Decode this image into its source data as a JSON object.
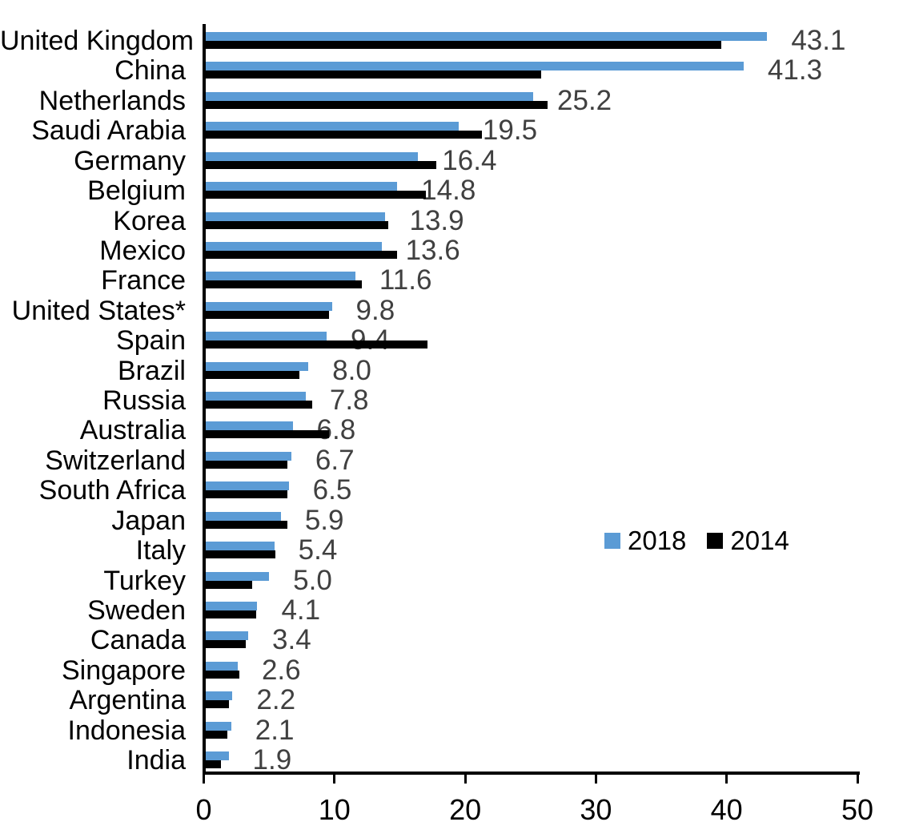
{
  "chart_data": {
    "type": "bar",
    "orientation": "horizontal",
    "title": "",
    "xlabel": "",
    "ylabel": "",
    "categories": [
      "United Kingdom",
      "China",
      "Netherlands",
      "Saudi Arabia",
      "Germany",
      "Belgium",
      "Korea",
      "Mexico",
      "France",
      "United States*",
      "Spain",
      "Brazil",
      "Russia",
      "Australia",
      "Switzerland",
      "South Africa",
      "Japan",
      "Italy",
      "Turkey",
      "Sweden",
      "Canada",
      "Singapore",
      "Argentina",
      "Indonesia",
      "India"
    ],
    "series": [
      {
        "name": "2018",
        "color": "#5B9BD5",
        "values": [
          43.1,
          41.3,
          25.2,
          19.5,
          16.4,
          14.8,
          13.9,
          13.6,
          11.6,
          9.8,
          9.4,
          8.0,
          7.8,
          6.8,
          6.7,
          6.5,
          5.9,
          5.4,
          5.0,
          4.1,
          3.4,
          2.6,
          2.2,
          2.1,
          1.9
        ]
      },
      {
        "name": "2014",
        "color": "#000000",
        "values": [
          39.6,
          25.8,
          26.3,
          21.3,
          17.8,
          17.0,
          14.1,
          14.8,
          12.1,
          9.6,
          17.1,
          7.3,
          8.3,
          9.6,
          6.4,
          6.4,
          6.4,
          5.5,
          3.7,
          4.0,
          3.2,
          2.7,
          1.9,
          1.8,
          1.3
        ]
      }
    ],
    "value_labels": [
      "43.1",
      "41.3",
      "25.2",
      "19.5",
      "16.4",
      "14.8",
      "13.9",
      "13.6",
      "11.6",
      "9.8",
      "9.4",
      "8.0",
      "7.8",
      "6.8",
      "6.7",
      "6.5",
      "5.9",
      "5.4",
      "5.0",
      "4.1",
      "3.4",
      "2.6",
      "2.2",
      "2.1",
      "1.9"
    ],
    "value_labels_series": "2018",
    "x_ticks": [
      "0",
      "10",
      "20",
      "30",
      "40",
      "50"
    ],
    "xlim": [
      0,
      50
    ],
    "grid": false,
    "legend_position": "middle-right"
  },
  "colors": {
    "bar_2018": "#5B9BD5",
    "bar_2014": "#000000",
    "value_label": "#404040",
    "axis": "#000000",
    "background": "#FFFFFF"
  }
}
